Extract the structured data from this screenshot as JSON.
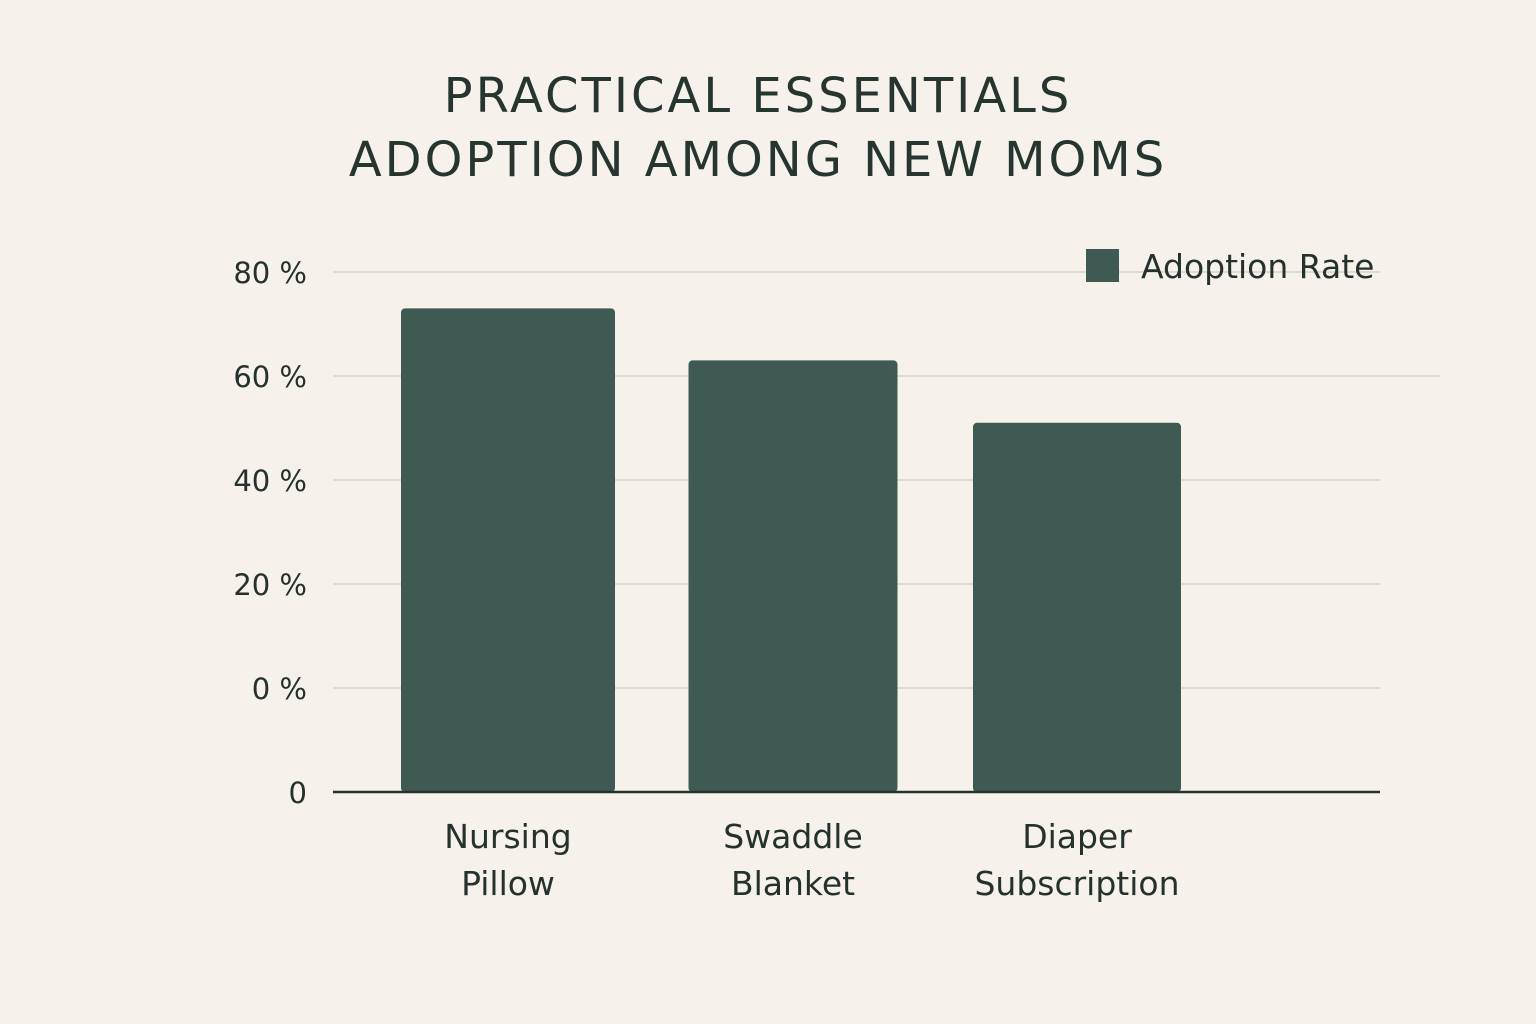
{
  "chart_data": {
    "type": "bar",
    "title": [
      "PRACTICAL ESSENTIALS",
      "ADOPTION AMONG NEW MOMS"
    ],
    "categories": [
      [
        "Nursing",
        "Pillow"
      ],
      [
        "Swaddle",
        "Blanket"
      ],
      [
        "Diaper",
        "Subscription"
      ]
    ],
    "series": [
      {
        "name": "Adoption Rate",
        "values": [
          73,
          63,
          51
        ]
      }
    ],
    "y_ticks": [
      "0",
      "0 %",
      "20 %",
      "40 %",
      "60 %",
      "80 %"
    ],
    "ylim": [
      -20,
      80
    ],
    "xlabel": "",
    "ylabel": "",
    "grid": true,
    "legend": "top-right",
    "colors": {
      "bar": "#3e5a52",
      "grid": "#dedad2",
      "axis": "#25312d",
      "background": "#f6f2eb"
    }
  }
}
